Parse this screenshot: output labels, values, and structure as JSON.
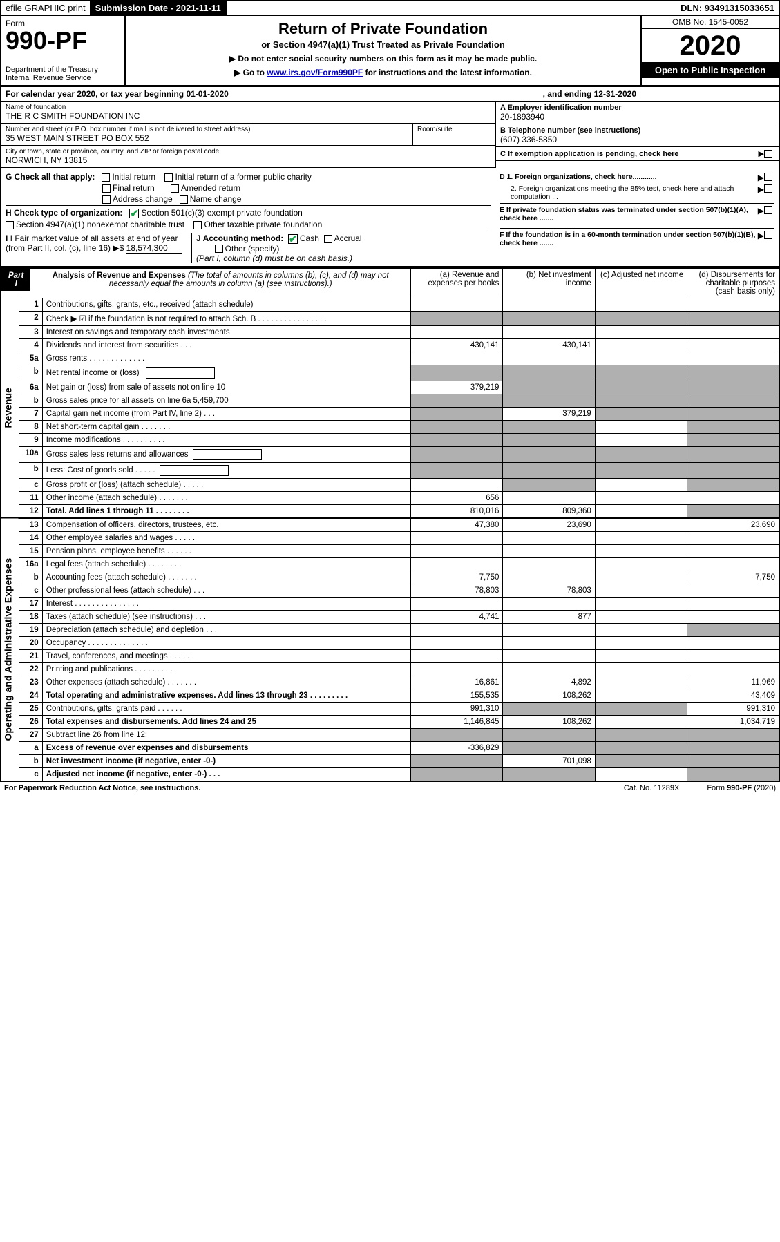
{
  "top": {
    "efile": "efile GRAPHIC print",
    "subdate_label": "Submission Date - 2021-11-11",
    "dln": "DLN: 93491315033651"
  },
  "header": {
    "form_word": "Form",
    "form_num": "990-PF",
    "dept": "Department of the Treasury",
    "irs": "Internal Revenue Service",
    "title": "Return of Private Foundation",
    "subtitle": "or Section 4947(a)(1) Trust Treated as Private Foundation",
    "note1": "▶ Do not enter social security numbers on this form as it may be made public.",
    "note2_pre": "▶ Go to ",
    "note2_link": "www.irs.gov/Form990PF",
    "note2_post": " for instructions and the latest information.",
    "omb": "OMB No. 1545-0052",
    "year": "2020",
    "open": "Open to Public Inspection"
  },
  "calrow": {
    "pre": "For calendar year 2020, or tax year beginning 01-01-2020",
    "mid_gap": "",
    "post": ", and ending 12-31-2020"
  },
  "id": {
    "name_lbl": "Name of foundation",
    "name_val": "THE R C SMITH FOUNDATION INC",
    "addr_lbl": "Number and street (or P.O. box number if mail is not delivered to street address)",
    "addr_val": "35 WEST MAIN STREET PO BOX 552",
    "room_lbl": "Room/suite",
    "city_lbl": "City or town, state or province, country, and ZIP or foreign postal code",
    "city_val": "NORWICH, NY  13815",
    "ein_lbl": "A Employer identification number",
    "ein_val": "20-1893940",
    "tel_lbl": "B Telephone number (see instructions)",
    "tel_val": "(607) 336-5850",
    "c_lbl": "C If exemption application is pending, check here"
  },
  "g": {
    "label": "G Check all that apply:",
    "opts": [
      "Initial return",
      "Final return",
      "Address change",
      "Initial return of a former public charity",
      "Amended return",
      "Name change"
    ]
  },
  "h": {
    "label": "H Check type of organization:",
    "opt1": "Section 501(c)(3) exempt private foundation",
    "opt2": "Section 4947(a)(1) nonexempt charitable trust",
    "opt3": "Other taxable private foundation"
  },
  "i": {
    "label": "I Fair market value of all assets at end of year (from Part II, col. (c), line 16)",
    "val_pre": "▶$ ",
    "val": "18,574,300"
  },
  "j": {
    "label": "J Accounting method:",
    "cash": "Cash",
    "accrual": "Accrual",
    "other": "Other (specify)",
    "note": "(Part I, column (d) must be on cash basis.)"
  },
  "right_checks": {
    "d1": "D 1. Foreign organizations, check here............",
    "d2": "2. Foreign organizations meeting the 85% test, check here and attach computation ...",
    "e": "E  If private foundation status was terminated under section 507(b)(1)(A), check here .......",
    "f": "F  If the foundation is in a 60-month termination under section 507(b)(1)(B), check here .......",
    "arrow": "▶"
  },
  "part1": {
    "badge": "Part I",
    "title_bold": "Analysis of Revenue and Expenses",
    "title_rest": " (The total of amounts in columns (b), (c), and (d) may not necessarily equal the amounts in column (a) (see instructions).)",
    "col_a": "(a)   Revenue and expenses per books",
    "col_b": "(b)   Net investment income",
    "col_c": "(c)   Adjusted net income",
    "col_d": "(d)  Disbursements for charitable purposes (cash basis only)",
    "side_rev": "Revenue",
    "side_exp": "Operating and Administrative Expenses"
  },
  "rows": [
    {
      "n": "1",
      "d": "Contributions, gifts, grants, etc., received (attach schedule)",
      "a": "",
      "b": "",
      "c": "",
      "dd": ""
    },
    {
      "n": "2",
      "d": "Check ▶ ☑ if the foundation is not required to attach Sch. B   . . . . . . . . . . . . . . . .",
      "a": "",
      "b": "",
      "c": "",
      "dd": "",
      "shadeAll": true
    },
    {
      "n": "3",
      "d": "Interest on savings and temporary cash investments",
      "a": "",
      "b": "",
      "c": "",
      "dd": ""
    },
    {
      "n": "4",
      "d": "Dividends and interest from securities   . . .",
      "a": "430,141",
      "b": "430,141",
      "c": "",
      "dd": ""
    },
    {
      "n": "5a",
      "d": "Gross rents   . . . . . . . . . . . . .",
      "a": "",
      "b": "",
      "c": "",
      "dd": ""
    },
    {
      "n": "b",
      "d": "Net rental income or (loss)  ",
      "a": "",
      "b": "",
      "c": "",
      "dd": "",
      "shadeAll": true,
      "inline": true
    },
    {
      "n": "6a",
      "d": "Net gain or (loss) from sale of assets not on line 10",
      "a": "379,219",
      "b": "",
      "c": "",
      "dd": "",
      "shadeBCD": true
    },
    {
      "n": "b",
      "d": "Gross sales price for all assets on line 6a          5,459,700",
      "a": "",
      "b": "",
      "c": "",
      "dd": "",
      "shadeAll": true
    },
    {
      "n": "7",
      "d": "Capital gain net income (from Part IV, line 2)   . . .",
      "a": "",
      "b": "379,219",
      "c": "",
      "dd": "",
      "shadeA": true,
      "shadeCD": true
    },
    {
      "n": "8",
      "d": "Net short-term capital gain   . . . . . . .",
      "a": "",
      "b": "",
      "c": "",
      "dd": "",
      "shadeA": true,
      "shadeB": true,
      "shadeD": true
    },
    {
      "n": "9",
      "d": "Income modifications . . . . . . . . . .",
      "a": "",
      "b": "",
      "c": "",
      "dd": "",
      "shadeA": true,
      "shadeB": true,
      "shadeD": true
    },
    {
      "n": "10a",
      "d": "Gross sales less returns and allowances",
      "a": "",
      "b": "",
      "c": "",
      "dd": "",
      "shadeAll": true,
      "inline": true
    },
    {
      "n": "b",
      "d": "Less: Cost of goods sold   . . . . .",
      "a": "",
      "b": "",
      "c": "",
      "dd": "",
      "shadeAll": true,
      "inline": true
    },
    {
      "n": "c",
      "d": "Gross profit or (loss) (attach schedule)   . . . . .",
      "a": "",
      "b": "",
      "c": "",
      "dd": "",
      "shadeB": true,
      "shadeD": true
    },
    {
      "n": "11",
      "d": "Other income (attach schedule)   . . . . . . .",
      "a": "656",
      "b": "",
      "c": "",
      "dd": ""
    },
    {
      "n": "12",
      "d": "Total. Add lines 1 through 11   . . . . . . . .",
      "a": "810,016",
      "b": "809,360",
      "c": "",
      "dd": "",
      "bold": true,
      "shadeD": true
    },
    {
      "n": "13",
      "d": "Compensation of officers, directors, trustees, etc.",
      "a": "47,380",
      "b": "23,690",
      "c": "",
      "dd": "23,690",
      "sect": "exp"
    },
    {
      "n": "14",
      "d": "Other employee salaries and wages   . . . . .",
      "a": "",
      "b": "",
      "c": "",
      "dd": ""
    },
    {
      "n": "15",
      "d": "Pension plans, employee benefits . . . . . .",
      "a": "",
      "b": "",
      "c": "",
      "dd": ""
    },
    {
      "n": "16a",
      "d": "Legal fees (attach schedule) . . . . . . . .",
      "a": "",
      "b": "",
      "c": "",
      "dd": ""
    },
    {
      "n": "b",
      "d": "Accounting fees (attach schedule) . . . . . . .",
      "a": "7,750",
      "b": "",
      "c": "",
      "dd": "7,750"
    },
    {
      "n": "c",
      "d": "Other professional fees (attach schedule)   . . .",
      "a": "78,803",
      "b": "78,803",
      "c": "",
      "dd": ""
    },
    {
      "n": "17",
      "d": "Interest . . . . . . . . . . . . . . .",
      "a": "",
      "b": "",
      "c": "",
      "dd": ""
    },
    {
      "n": "18",
      "d": "Taxes (attach schedule) (see instructions)   . . .",
      "a": "4,741",
      "b": "877",
      "c": "",
      "dd": ""
    },
    {
      "n": "19",
      "d": "Depreciation (attach schedule) and depletion   . . .",
      "a": "",
      "b": "",
      "c": "",
      "dd": "",
      "shadeD": true
    },
    {
      "n": "20",
      "d": "Occupancy . . . . . . . . . . . . . .",
      "a": "",
      "b": "",
      "c": "",
      "dd": ""
    },
    {
      "n": "21",
      "d": "Travel, conferences, and meetings . . . . . .",
      "a": "",
      "b": "",
      "c": "",
      "dd": ""
    },
    {
      "n": "22",
      "d": "Printing and publications . . . . . . . . .",
      "a": "",
      "b": "",
      "c": "",
      "dd": ""
    },
    {
      "n": "23",
      "d": "Other expenses (attach schedule) . . . . . . .",
      "a": "16,861",
      "b": "4,892",
      "c": "",
      "dd": "11,969",
      "icon": true
    },
    {
      "n": "24",
      "d": "Total operating and administrative expenses. Add lines 13 through 23   . . . . . . . . .",
      "a": "155,535",
      "b": "108,262",
      "c": "",
      "dd": "43,409",
      "bold": true
    },
    {
      "n": "25",
      "d": "Contributions, gifts, grants paid   . . . . . .",
      "a": "991,310",
      "b": "",
      "c": "",
      "dd": "991,310",
      "shadeB": true,
      "shadeC": true
    },
    {
      "n": "26",
      "d": "Total expenses and disbursements. Add lines 24 and 25",
      "a": "1,146,845",
      "b": "108,262",
      "c": "",
      "dd": "1,034,719",
      "bold": true
    },
    {
      "n": "27",
      "d": "Subtract line 26 from line 12:",
      "a": "",
      "b": "",
      "c": "",
      "dd": "",
      "shadeAll": true
    },
    {
      "n": "a",
      "d": "Excess of revenue over expenses and disbursements",
      "a": "-336,829",
      "b": "",
      "c": "",
      "dd": "",
      "bold": true,
      "shadeBCD": true
    },
    {
      "n": "b",
      "d": "Net investment income (if negative, enter -0-)",
      "a": "",
      "b": "701,098",
      "c": "",
      "dd": "",
      "bold": true,
      "shadeA": true,
      "shadeCD": true
    },
    {
      "n": "c",
      "d": "Adjusted net income (if negative, enter -0-)   . . .",
      "a": "",
      "b": "",
      "c": "",
      "dd": "",
      "bold": true,
      "shadeA": true,
      "shadeB": true,
      "shadeD": true
    }
  ],
  "footer": {
    "pra": "For Paperwork Reduction Act Notice, see instructions.",
    "cat": "Cat. No. 11289X",
    "form": "Form 990-PF (2020)"
  }
}
